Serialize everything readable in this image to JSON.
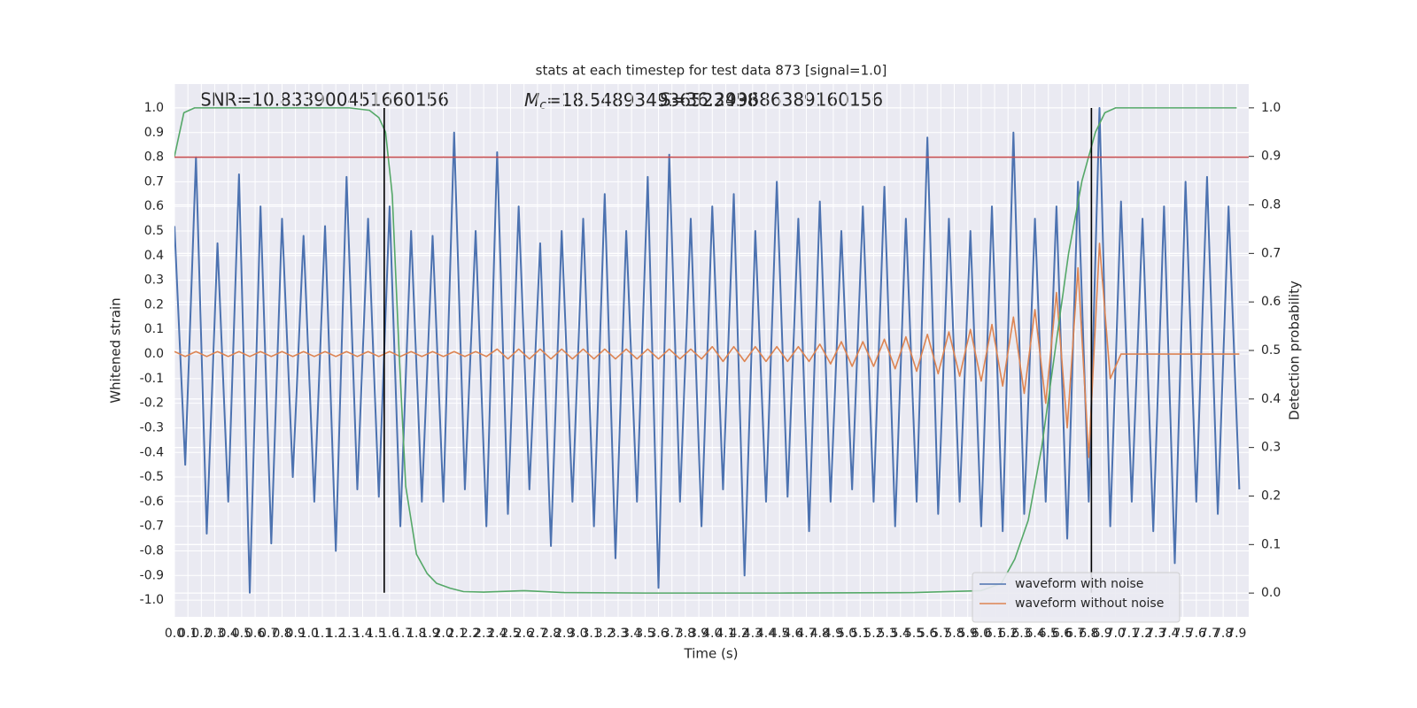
{
  "chart_data": {
    "type": "line",
    "title": "stats at each timestep for test data 873 [signal=1.0]",
    "xlabel": "Time (s)",
    "ylabel": "Whitened strain",
    "y2label": "Detection probability",
    "annotations": [
      {
        "text": "SNR=10.833900451660156"
      },
      {
        "symbol": "M",
        "subscript": "c",
        "text": "=18.548934936523438"
      },
      {
        "text": "S=36.299686389160156"
      }
    ],
    "xlim": [
      0,
      7.99
    ],
    "ylim": [
      -1.068,
      1.097
    ],
    "y2lim": [
      -0.049,
      1.049
    ],
    "grid": true,
    "legend": "lower right",
    "xticks": [
      {
        "value": 0,
        "label": "0.0"
      },
      0.1,
      0.2,
      0.3,
      0.4,
      0.5,
      0.6,
      0.7,
      0.8,
      0.9,
      {
        "value": 1,
        "label": "1.0"
      },
      1.1,
      1.2,
      1.3,
      1.4,
      1.5,
      1.6,
      1.7,
      1.8,
      1.9,
      {
        "value": 2,
        "label": "2.0"
      },
      2.1,
      2.2,
      2.3,
      2.4,
      2.5,
      2.6,
      2.7,
      2.8,
      2.9,
      {
        "value": 3,
        "label": "3.0"
      },
      3.1,
      3.2,
      3.3,
      3.4,
      3.5,
      3.6,
      3.7,
      3.8,
      3.9,
      {
        "value": 4,
        "label": "4.0"
      },
      4.1,
      4.2,
      4.3,
      4.4,
      4.5,
      4.6,
      4.7,
      4.8,
      4.9,
      {
        "value": 5,
        "label": "5.0"
      },
      5.1,
      5.2,
      5.3,
      5.4,
      5.5,
      5.6,
      5.7,
      5.8,
      5.9,
      {
        "value": 6,
        "label": "6.0"
      },
      6.1,
      6.2,
      6.3,
      6.4,
      6.5,
      6.6,
      6.7,
      6.8,
      6.9,
      {
        "value": 7,
        "label": "7.0"
      },
      7.1,
      7.2,
      7.3,
      7.4,
      7.5,
      7.6,
      7.7,
      7.8,
      7.9
    ],
    "yticks": [
      {
        "value": -1,
        "label": "-1.0"
      },
      -0.9,
      -0.8,
      -0.7,
      -0.6,
      -0.5,
      -0.4,
      -0.3,
      -0.2,
      -0.1,
      {
        "value": 0,
        "label": "0.0"
      },
      0.1,
      0.2,
      0.3,
      0.4,
      0.5,
      0.6,
      0.7,
      0.8,
      0.9,
      {
        "value": 1,
        "label": "1.0"
      }
    ],
    "y2ticks": [
      {
        "value": 0,
        "label": "0.0"
      },
      0.1,
      0.2,
      0.3,
      0.4,
      0.5,
      0.6,
      0.7,
      0.8,
      0.9,
      {
        "value": 1,
        "label": "1.0"
      }
    ],
    "vlines": {
      "x": [
        1.56,
        6.82
      ],
      "ymin": -0.97,
      "ymax": 1.0,
      "color": "#000000"
    },
    "hline": {
      "y": 0.8,
      "color": "#c44e52"
    },
    "series": [
      {
        "name": "waveform with noise",
        "color": "#4c72b0",
        "x": [
          0,
          0.08,
          0.16,
          0.24,
          0.32,
          0.4,
          0.48,
          0.56,
          0.64,
          0.72,
          0.8,
          0.88,
          0.96,
          1.04,
          1.12,
          1.2,
          1.28,
          1.36,
          1.44,
          1.52,
          1.6,
          1.68,
          1.76,
          1.84,
          1.92,
          2,
          2.08,
          2.16,
          2.24,
          2.32,
          2.4,
          2.48,
          2.56,
          2.64,
          2.72,
          2.8,
          2.88,
          2.96,
          3.04,
          3.12,
          3.2,
          3.28,
          3.36,
          3.44,
          3.52,
          3.6,
          3.68,
          3.76,
          3.84,
          3.92,
          4,
          4.08,
          4.16,
          4.24,
          4.32,
          4.4,
          4.48,
          4.56,
          4.64,
          4.72,
          4.8,
          4.88,
          4.96,
          5.04,
          5.12,
          5.2,
          5.28,
          5.36,
          5.44,
          5.52,
          5.6,
          5.68,
          5.76,
          5.84,
          5.92,
          6,
          6.08,
          6.16,
          6.24,
          6.32,
          6.4,
          6.48,
          6.56,
          6.64,
          6.72,
          6.8,
          6.88,
          6.96,
          7.04,
          7.12,
          7.2,
          7.28,
          7.36,
          7.44,
          7.52,
          7.6,
          7.68,
          7.76,
          7.84,
          7.92
        ],
        "values": [
          0.52,
          -0.45,
          0.8,
          -0.73,
          0.45,
          -0.6,
          0.73,
          -0.97,
          0.6,
          -0.77,
          0.55,
          -0.5,
          0.48,
          -0.6,
          0.52,
          -0.8,
          0.72,
          -0.55,
          0.55,
          -0.58,
          0.6,
          -0.7,
          0.5,
          -0.6,
          0.48,
          -0.6,
          0.9,
          -0.55,
          0.5,
          -0.7,
          0.82,
          -0.65,
          0.6,
          -0.55,
          0.45,
          -0.78,
          0.5,
          -0.6,
          0.55,
          -0.7,
          0.65,
          -0.83,
          0.5,
          -0.6,
          0.72,
          -0.95,
          0.81,
          -0.6,
          0.55,
          -0.7,
          0.6,
          -0.55,
          0.65,
          -0.9,
          0.5,
          -0.6,
          0.7,
          -0.58,
          0.55,
          -0.72,
          0.62,
          -0.6,
          0.5,
          -0.55,
          0.6,
          -0.6,
          0.68,
          -0.7,
          0.55,
          -0.6,
          0.88,
          -0.65,
          0.55,
          -0.6,
          0.5,
          -0.7,
          0.6,
          -0.72,
          0.9,
          -0.65,
          0.55,
          -0.6,
          0.6,
          -0.75,
          0.7,
          -0.6,
          1.0,
          -0.7,
          0.62,
          -0.6,
          0.55,
          -0.72,
          0.6,
          -0.85,
          0.7,
          -0.6,
          0.72,
          -0.65,
          0.6,
          -0.55
        ]
      },
      {
        "name": "waveform without noise",
        "color": "#dd8452",
        "x": [
          0,
          0.08,
          0.16,
          0.24,
          0.32,
          0.4,
          0.48,
          0.56,
          0.64,
          0.72,
          0.8,
          0.88,
          0.96,
          1.04,
          1.12,
          1.2,
          1.28,
          1.36,
          1.44,
          1.52,
          1.6,
          1.68,
          1.76,
          1.84,
          1.92,
          2,
          2.08,
          2.16,
          2.24,
          2.32,
          2.4,
          2.48,
          2.56,
          2.64,
          2.72,
          2.8,
          2.88,
          2.96,
          3.04,
          3.12,
          3.2,
          3.28,
          3.36,
          3.44,
          3.52,
          3.6,
          3.68,
          3.76,
          3.84,
          3.92,
          4,
          4.08,
          4.16,
          4.24,
          4.32,
          4.4,
          4.48,
          4.56,
          4.64,
          4.72,
          4.8,
          4.88,
          4.96,
          5.04,
          5.12,
          5.2,
          5.28,
          5.36,
          5.44,
          5.52,
          5.6,
          5.68,
          5.76,
          5.84,
          5.92,
          6,
          6.08,
          6.16,
          6.24,
          6.32,
          6.4,
          6.48,
          6.56,
          6.64,
          6.72,
          6.8,
          6.88,
          6.96,
          7.04,
          7.12,
          7.2,
          7.28,
          7.36,
          7.44,
          7.52,
          7.6,
          7.68,
          7.76,
          7.84,
          7.92
        ],
        "values": [
          0.01,
          -0.01,
          0.01,
          -0.01,
          0.01,
          -0.01,
          0.01,
          -0.01,
          0.01,
          -0.01,
          0.01,
          -0.01,
          0.01,
          -0.01,
          0.01,
          -0.01,
          0.01,
          -0.01,
          0.01,
          -0.01,
          0.01,
          -0.01,
          0.01,
          -0.01,
          0.01,
          -0.01,
          0.01,
          -0.01,
          0.01,
          -0.01,
          0.02,
          -0.02,
          0.02,
          -0.02,
          0.02,
          -0.02,
          0.02,
          -0.02,
          0.02,
          -0.02,
          0.02,
          -0.02,
          0.02,
          -0.02,
          0.02,
          -0.02,
          0.02,
          -0.02,
          0.02,
          -0.02,
          0.03,
          -0.03,
          0.03,
          -0.03,
          0.03,
          -0.03,
          0.03,
          -0.03,
          0.03,
          -0.03,
          0.04,
          -0.04,
          0.05,
          -0.05,
          0.05,
          -0.05,
          0.06,
          -0.06,
          0.07,
          -0.07,
          0.08,
          -0.08,
          0.09,
          -0.09,
          0.1,
          -0.11,
          0.12,
          -0.13,
          0.15,
          -0.16,
          0.18,
          -0.2,
          0.25,
          -0.3,
          0.35,
          -0.42,
          0.45,
          -0.1,
          0,
          0,
          0,
          0,
          0,
          0,
          0,
          0,
          0,
          0,
          0,
          0
        ]
      },
      {
        "color": "#55a868",
        "axis": "y2",
        "x": [
          0,
          0.07,
          0.15,
          0.3,
          1.3,
          1.45,
          1.52,
          1.57,
          1.62,
          1.67,
          1.72,
          1.8,
          1.88,
          1.95,
          2.05,
          2.15,
          2.3,
          2.6,
          2.9,
          3.5,
          4.5,
          5.5,
          6.0,
          6.15,
          6.25,
          6.35,
          6.45,
          6.55,
          6.65,
          6.75,
          6.85,
          6.92,
          7.0,
          7.1,
          7.5,
          7.9
        ],
        "values": [
          0.9,
          0.99,
          1.0,
          1.0,
          1.0,
          0.995,
          0.98,
          0.95,
          0.82,
          0.5,
          0.22,
          0.08,
          0.04,
          0.02,
          0.01,
          0.003,
          0.002,
          0.005,
          0.001,
          0.0,
          0.0,
          0.001,
          0.005,
          0.02,
          0.07,
          0.15,
          0.3,
          0.5,
          0.7,
          0.85,
          0.95,
          0.99,
          1.0,
          1.0,
          1.0,
          1.0
        ]
      }
    ]
  }
}
